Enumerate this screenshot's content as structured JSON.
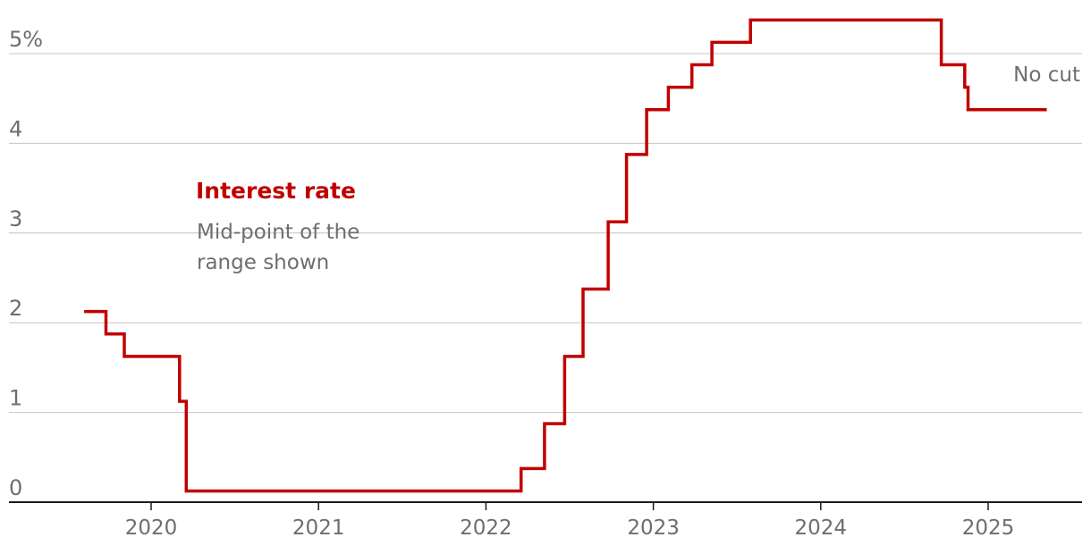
{
  "chart_data": {
    "type": "line",
    "step": true,
    "x_unit": "year",
    "xlim": [
      2019.2,
      2025.55
    ],
    "ylim": [
      0,
      5.4
    ],
    "y_ticks": [
      0,
      1,
      2,
      3,
      4,
      5
    ],
    "y_tick_labels": [
      "0",
      "1",
      "2",
      "3",
      "4",
      "5%"
    ],
    "x_ticks": [
      2020,
      2021,
      2022,
      2023,
      2024,
      2025
    ],
    "x_tick_labels": [
      "2020",
      "2021",
      "2022",
      "2023",
      "2024",
      "2025"
    ],
    "grid": true,
    "color": "#c00000",
    "series_label": {
      "title": "Interest rate",
      "subtitle_line1": "Mid-point of the",
      "subtitle_line2": "range shown"
    },
    "annotation": "No cut",
    "series": [
      {
        "points": [
          [
            2019.6,
            2.125
          ],
          [
            2019.73,
            1.875
          ],
          [
            2019.84,
            1.625
          ],
          [
            2020.17,
            1.125
          ],
          [
            2020.21,
            0.125
          ],
          [
            2022.21,
            0.375
          ],
          [
            2022.35,
            0.875
          ],
          [
            2022.47,
            1.625
          ],
          [
            2022.58,
            2.375
          ],
          [
            2022.73,
            3.125
          ],
          [
            2022.84,
            3.875
          ],
          [
            2022.96,
            4.375
          ],
          [
            2023.09,
            4.625
          ],
          [
            2023.23,
            4.875
          ],
          [
            2023.35,
            5.125
          ],
          [
            2023.58,
            5.375
          ],
          [
            2024.72,
            4.875
          ],
          [
            2024.86,
            4.625
          ],
          [
            2024.88,
            4.375
          ],
          [
            2025.35,
            4.375
          ]
        ]
      }
    ]
  }
}
